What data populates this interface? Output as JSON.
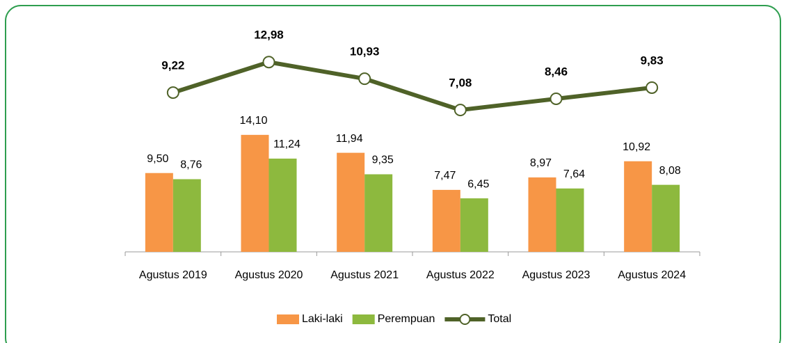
{
  "chart_data": {
    "type": "bar",
    "categories": [
      "Agustus 2019",
      "Agustus 2020",
      "Agustus 2021",
      "Agustus 2022",
      "Agustus 2023",
      "Agustus 2024"
    ],
    "series": [
      {
        "name": "Laki-laki",
        "color": "#f79646",
        "values": [
          9.5,
          14.1,
          11.94,
          7.47,
          8.97,
          10.92
        ],
        "value_labels": [
          "9,50",
          "14,10",
          "11,94",
          "7,47",
          "8,97",
          "10,92"
        ]
      },
      {
        "name": "Perempuan",
        "color": "#8db93e",
        "values": [
          8.76,
          11.24,
          9.35,
          6.45,
          7.64,
          8.08
        ],
        "value_labels": [
          "8,76",
          "11,24",
          "9,35",
          "6,45",
          "7,64",
          "8,08"
        ]
      },
      {
        "name": "Total",
        "type": "line",
        "axis": "y2",
        "color": "#4f6228",
        "values": [
          9.22,
          12.98,
          10.93,
          7.08,
          8.46,
          9.83
        ],
        "value_labels": [
          "9,22",
          "12,98",
          "10,93",
          "7,08",
          "8,46",
          "9,83"
        ]
      }
    ],
    "ylim": [
      0,
      27
    ],
    "y2lim": [
      -10.4,
      17.2
    ],
    "legend": "bottom"
  }
}
